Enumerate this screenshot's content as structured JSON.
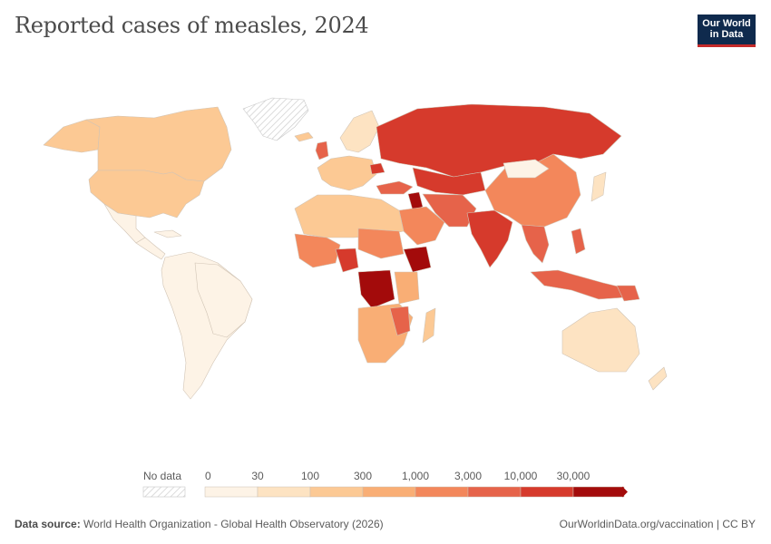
{
  "title": "Reported cases of measles, 2024",
  "logo": {
    "line1": "Our World",
    "line2": "in Data"
  },
  "legend": {
    "no_data_label": "No data",
    "ticks": [
      "0",
      "30",
      "100",
      "300",
      "1,000",
      "3,000",
      "10,000",
      "30,000"
    ],
    "colors": [
      "#fdf3e6",
      "#fde3c2",
      "#fcc994",
      "#f9ae75",
      "#f3875b",
      "#e6634a",
      "#d63a2c",
      "#a30b0b"
    ]
  },
  "footer": {
    "source_label": "Data source:",
    "source_text": "World Health Organization - Global Health Observatory (2026)",
    "credit": "OurWorldinData.org/vaccination | CC BY"
  },
  "colors": {
    "border": "#d1c4b5",
    "no_data_stroke": "#c8c8c8"
  }
}
